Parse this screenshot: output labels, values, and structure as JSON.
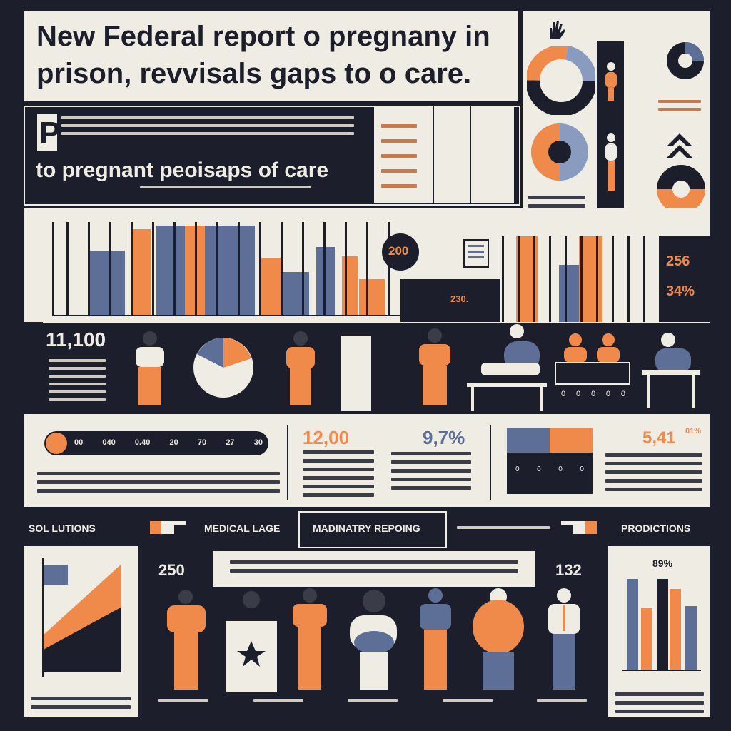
{
  "header": {
    "title_line1": "New Federal report o pregnany in",
    "title_line2": "prison, revvisals gaps to o care.",
    "dropcap": "P",
    "subhead": "to pregnant peoisaps of care"
  },
  "stats": {
    "circle_value": "200",
    "right_pct_1": "256",
    "right_pct_2": "34%",
    "small_value": "230.",
    "big_count": "11,100",
    "progress_labels": [
      "00",
      "040",
      "0.40",
      "20",
      "70",
      "27",
      "30"
    ],
    "mid_value_1": "12,00",
    "mid_value_2": "9,7%",
    "mid_value_3": "5,41",
    "mid_value_3_suffix": "01%",
    "scale_digits": [
      "0",
      "0",
      "0",
      "0",
      "0",
      "0"
    ],
    "scale_digits_2": [
      "0",
      "0",
      "0",
      "0"
    ]
  },
  "nav": {
    "item1": "SOL LUTIONS",
    "item2": "MEDICAL LAGE",
    "item3": "MADINATRY REPOING",
    "item4": "PRODICTIONS"
  },
  "bottom": {
    "left_value": "250",
    "right_value": "132",
    "chart_pct": "89%"
  },
  "colors": {
    "orange": "#f08a4b",
    "navy": "#1c1f2b",
    "blue": "#5e6f97",
    "cream": "#efece4"
  }
}
